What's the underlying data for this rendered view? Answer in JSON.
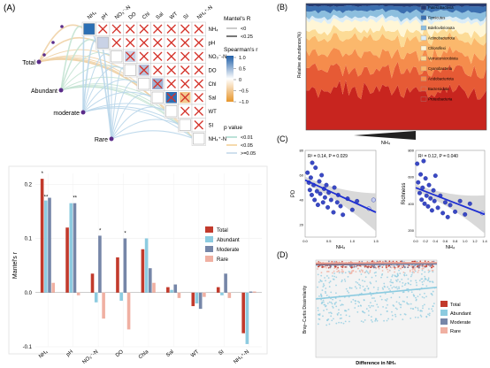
{
  "panel_labels": {
    "a": "(A)",
    "b": "(B)",
    "c": "(C)",
    "d": "(D)"
  },
  "colors": {
    "total": "#c23a2c",
    "abundant": "#8ccbe0",
    "moderate": "#7686a8",
    "rare": "#f0b0a2",
    "regression": "#1f2fd2",
    "point": "#3a49c4",
    "band": "#cfcfcf",
    "heat_pos": "#2c6fb4",
    "heat_neg": "#e8a23a",
    "edge_weak": "#b9d6ea",
    "edge_mid": "#c4e3d3",
    "edge_strong": "#f0d2a6"
  },
  "panel_a_heatmap": {
    "variables": [
      "NH₄",
      "pH",
      "NO₃⁻-N",
      "DO",
      "Chl",
      "Sal",
      "WT",
      "SI",
      "NH₄⁺-N"
    ],
    "groups": [
      "Total",
      "Abundant",
      "moderate",
      "Rare"
    ],
    "legend": {
      "mantel_r_title": "Mantel's R",
      "mantel_r_items": [
        "<0",
        "<0.25"
      ],
      "spearman_title": "Spearman's r",
      "spearman_ticks": [
        "1.0",
        "0.5",
        "0",
        "−0.5",
        "−1.0"
      ],
      "p_title": "p value",
      "p_items": [
        "<0.01",
        "<0.05",
        ">=0.05"
      ]
    }
  },
  "chart_data": [
    {
      "id": "A-bar",
      "type": "bar",
      "ylabel": "Mantel's r",
      "ylim": [
        -0.1,
        0.22
      ],
      "yticks": [
        "0.2",
        "0.1",
        "0.0",
        "-0.1"
      ],
      "categories": [
        "NH₄",
        "pH",
        "NO₃⁻-N",
        "DO",
        "Chla",
        "Sal",
        "WT",
        "SI",
        "NH₄⁺-N"
      ],
      "series": [
        {
          "name": "Total",
          "values": [
            0.21,
            0.12,
            0.035,
            0.065,
            0.08,
            0.01,
            -0.025,
            0.01,
            -0.075
          ]
        },
        {
          "name": "Abundant",
          "values": [
            0.17,
            0.165,
            -0.018,
            -0.015,
            0.1,
            0.005,
            -0.02,
            -0.005,
            -0.095
          ]
        },
        {
          "name": "Moderate",
          "values": [
            0.175,
            0.165,
            0.105,
            0.1,
            0.045,
            0.015,
            -0.03,
            0.035,
            0.002
          ]
        },
        {
          "name": "Rare",
          "values": [
            0.018,
            -0.005,
            -0.048,
            -0.068,
            0.018,
            -0.01,
            -0.008,
            -0.01,
            0.002
          ]
        }
      ],
      "annotations": [
        "*",
        "**",
        "**",
        "*",
        "*"
      ],
      "legend": [
        "Total",
        "Abundant",
        "Moderate",
        "Rare"
      ],
      "legend_position": "right"
    },
    {
      "id": "B",
      "type": "area",
      "xlabel": "NH₄",
      "ylabel": "Relative abundance(%)",
      "series_names": [
        "Patescibacteria",
        "Firmicutes",
        "Bdellovibrionota",
        "Actinobacteriota",
        "Chloroflexi",
        "Verrucomicrobiota",
        "Cyanobacteria",
        "Acidobacteriota",
        "Bacteroidota",
        "Proteobacteria"
      ],
      "series_colors": [
        "#243a73",
        "#3b6fb0",
        "#8cbede",
        "#dcedf7",
        "#fff6d6",
        "#fcdb96",
        "#fbb86c",
        "#f58c4c",
        "#e65a35",
        "#c8251f"
      ],
      "mean_fraction": [
        0.02,
        0.04,
        0.05,
        0.03,
        0.08,
        0.06,
        0.11,
        0.13,
        0.16,
        0.32
      ],
      "legend_position": "inside-right"
    },
    {
      "id": "C-left",
      "type": "scatter",
      "xlabel": "NH₄",
      "ylabel": "PD",
      "annotation": "R² = 0.14, P = 0.029",
      "xlim": [
        0,
        1.5
      ],
      "ylim": [
        10,
        80
      ],
      "xticks": [
        "0.0",
        "0.5",
        "1.0",
        "1.5"
      ],
      "points": [
        [
          0.05,
          62
        ],
        [
          0.08,
          54
        ],
        [
          0.1,
          48
        ],
        [
          0.12,
          58
        ],
        [
          0.14,
          44
        ],
        [
          0.15,
          70
        ],
        [
          0.18,
          52
        ],
        [
          0.2,
          40
        ],
        [
          0.22,
          66
        ],
        [
          0.25,
          47
        ],
        [
          0.27,
          36
        ],
        [
          0.3,
          55
        ],
        [
          0.32,
          45
        ],
        [
          0.35,
          60
        ],
        [
          0.38,
          38
        ],
        [
          0.4,
          49
        ],
        [
          0.42,
          42
        ],
        [
          0.45,
          52
        ],
        [
          0.48,
          34
        ],
        [
          0.5,
          46
        ],
        [
          0.55,
          40
        ],
        [
          0.6,
          30
        ],
        [
          0.62,
          50
        ],
        [
          0.68,
          38
        ],
        [
          0.7,
          44
        ],
        [
          0.75,
          35
        ],
        [
          0.8,
          28
        ],
        [
          0.9,
          41
        ],
        [
          1.0,
          32
        ],
        [
          1.1,
          39
        ],
        [
          1.35,
          33
        ],
        [
          1.45,
          40
        ]
      ],
      "trend": [
        [
          0.0,
          56
        ],
        [
          1.5,
          30
        ]
      ]
    },
    {
      "id": "C-right",
      "type": "scatter",
      "xlabel": "NH₄",
      "ylabel": "Richness",
      "annotation": "R² = 0.12, P = 0.040",
      "xlim": [
        0,
        1.4
      ],
      "ylim": [
        150,
        800
      ],
      "xticks": [
        "0.0",
        "0.2",
        "0.4",
        "0.6",
        "0.8",
        "1.0",
        "1.2",
        "1.4"
      ],
      "points": [
        [
          0.03,
          700
        ],
        [
          0.05,
          560
        ],
        [
          0.08,
          480
        ],
        [
          0.1,
          620
        ],
        [
          0.12,
          430
        ],
        [
          0.14,
          520
        ],
        [
          0.16,
          720
        ],
        [
          0.18,
          400
        ],
        [
          0.2,
          590
        ],
        [
          0.22,
          460
        ],
        [
          0.25,
          380
        ],
        [
          0.27,
          540
        ],
        [
          0.3,
          440
        ],
        [
          0.33,
          350
        ],
        [
          0.36,
          500
        ],
        [
          0.38,
          420
        ],
        [
          0.4,
          610
        ],
        [
          0.45,
          370
        ],
        [
          0.5,
          460
        ],
        [
          0.55,
          330
        ],
        [
          0.6,
          410
        ],
        [
          0.65,
          300
        ],
        [
          0.7,
          390
        ],
        [
          0.8,
          340
        ],
        [
          0.9,
          420
        ],
        [
          1.0,
          320
        ],
        [
          1.1,
          400
        ],
        [
          1.35,
          330
        ]
      ],
      "trend": [
        [
          0.0,
          520
        ],
        [
          1.4,
          320
        ]
      ]
    },
    {
      "id": "D",
      "type": "scatter",
      "xlabel": "Difference in NH₄",
      "ylabel": "Bray–Curtis Dissimilarity",
      "legend": [
        "Total",
        "Abundant",
        "Moderate",
        "Rare"
      ],
      "legend_position": "right",
      "trend_lines": [
        {
          "name": "Total",
          "from": [
            0,
            0.96
          ],
          "to": [
            1,
            0.97
          ]
        },
        {
          "name": "Abundant",
          "from": [
            0,
            0.6
          ],
          "to": [
            1,
            0.72
          ]
        },
        {
          "name": "Moderate",
          "from": [
            0,
            0.95
          ],
          "to": [
            1,
            0.96
          ]
        },
        {
          "name": "Rare",
          "from": [
            0,
            0.97
          ],
          "to": [
            1,
            0.975
          ]
        }
      ]
    }
  ]
}
